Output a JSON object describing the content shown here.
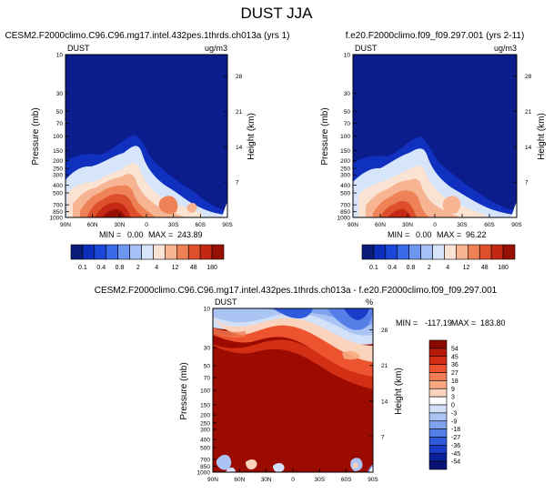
{
  "page_title": "DUST JJA",
  "units": "ug/m3",
  "chart_data": [
    {
      "type": "heatmap",
      "id": "panel-model",
      "title": "CESM2.F2000climo.C96.C96.mg17.intel.432pes.1thrds.ch013a (yrs 1)",
      "left_label": "DUST",
      "right_label": "ug/m3",
      "xlabel": "",
      "ylabel": "Pressure (mb)",
      "y2label": "Height (km)",
      "x_ticks": [
        "90N",
        "60N",
        "30N",
        "0",
        "30S",
        "60S",
        "90S"
      ],
      "y_ticks": [
        "10",
        "30",
        "50",
        "70",
        "100",
        "150",
        "200",
        "250",
        "300",
        "400",
        "500",
        "700",
        "850",
        "1000"
      ],
      "y2_ticks": [
        "28",
        "21",
        "14",
        "7"
      ],
      "ylim": [
        1000,
        10
      ],
      "min_label": "MIN =",
      "min_value": "0.00",
      "max_label": "MAX =",
      "max_value": "243.89",
      "colorbar_levels": [
        "0.1",
        "0.4",
        "0.8",
        "2",
        "4",
        "12",
        "48",
        "180"
      ]
    },
    {
      "type": "heatmap",
      "id": "panel-obs",
      "title": "f.e20.F2000climo.f09_f09.297.001 (yrs 2-11)",
      "left_label": "DUST",
      "right_label": "ug/m3",
      "xlabel": "",
      "ylabel": "Pressure (mb)",
      "y2label": "Height (km)",
      "x_ticks": [
        "90N",
        "60N",
        "30N",
        "0",
        "30S",
        "60S",
        "90S"
      ],
      "y_ticks": [
        "10",
        "30",
        "50",
        "70",
        "100",
        "150",
        "200",
        "250",
        "300",
        "400",
        "500",
        "700",
        "850",
        "1000"
      ],
      "y2_ticks": [
        "28",
        "21",
        "14",
        "7"
      ],
      "ylim": [
        1000,
        10
      ],
      "min_label": "MIN =",
      "min_value": "0.00",
      "max_label": "MAX =",
      "max_value": "96.22",
      "colorbar_levels": [
        "0.1",
        "0.4",
        "0.8",
        "2",
        "4",
        "12",
        "48",
        "180"
      ]
    },
    {
      "type": "heatmap",
      "id": "panel-diff",
      "title": "CESM2.F2000climo.C96.C96.mg17.intel.432pes.1thrds.ch013a - f.e20.F2000climo.f09_f09.297.001",
      "left_label": "DUST",
      "right_label": "%",
      "xlabel": "",
      "ylabel": "Pressure (mb)",
      "y2label": "Height (km)",
      "x_ticks": [
        "90N",
        "60N",
        "30N",
        "0",
        "30S",
        "60S",
        "90S"
      ],
      "y_ticks": [
        "10",
        "30",
        "50",
        "70",
        "100",
        "150",
        "200",
        "250",
        "300",
        "400",
        "500",
        "700",
        "850",
        "1000"
      ],
      "y2_ticks": [
        "28",
        "21",
        "14",
        "7"
      ],
      "ylim": [
        1000,
        10
      ],
      "min_label": "MIN =",
      "min_value": "-117.19",
      "max_label": "MAX =",
      "max_value": "183.80",
      "colorbar_levels": [
        "54",
        "45",
        "36",
        "27",
        "18",
        "9",
        "3",
        "0",
        "-3",
        "-9",
        "-18",
        "-27",
        "-36",
        "-45",
        "-54"
      ]
    }
  ],
  "colors": {
    "seq": [
      "#0a1a78",
      "#0b2fb8",
      "#1a47d6",
      "#3a6ae8",
      "#6c96f0",
      "#a4c0f5",
      "#d7e5fa",
      "#fbe3d4",
      "#f6b493",
      "#ee8155",
      "#dd4f2b",
      "#c42714",
      "#981004"
    ],
    "div": [
      "#8b0a00",
      "#b31a07",
      "#d22f15",
      "#ec532e",
      "#f47d55",
      "#f7a880",
      "#fbd3bc",
      "#ffffff",
      "#d2e0f8",
      "#aac4f4",
      "#7ea2ee",
      "#557ee6",
      "#2f5adb",
      "#1a3cc9",
      "#0a1f9a",
      "#0a1475"
    ],
    "field_dark": "#0b1d8c",
    "field_mid": "#1030c0",
    "diff_red": "#9c0b00"
  }
}
